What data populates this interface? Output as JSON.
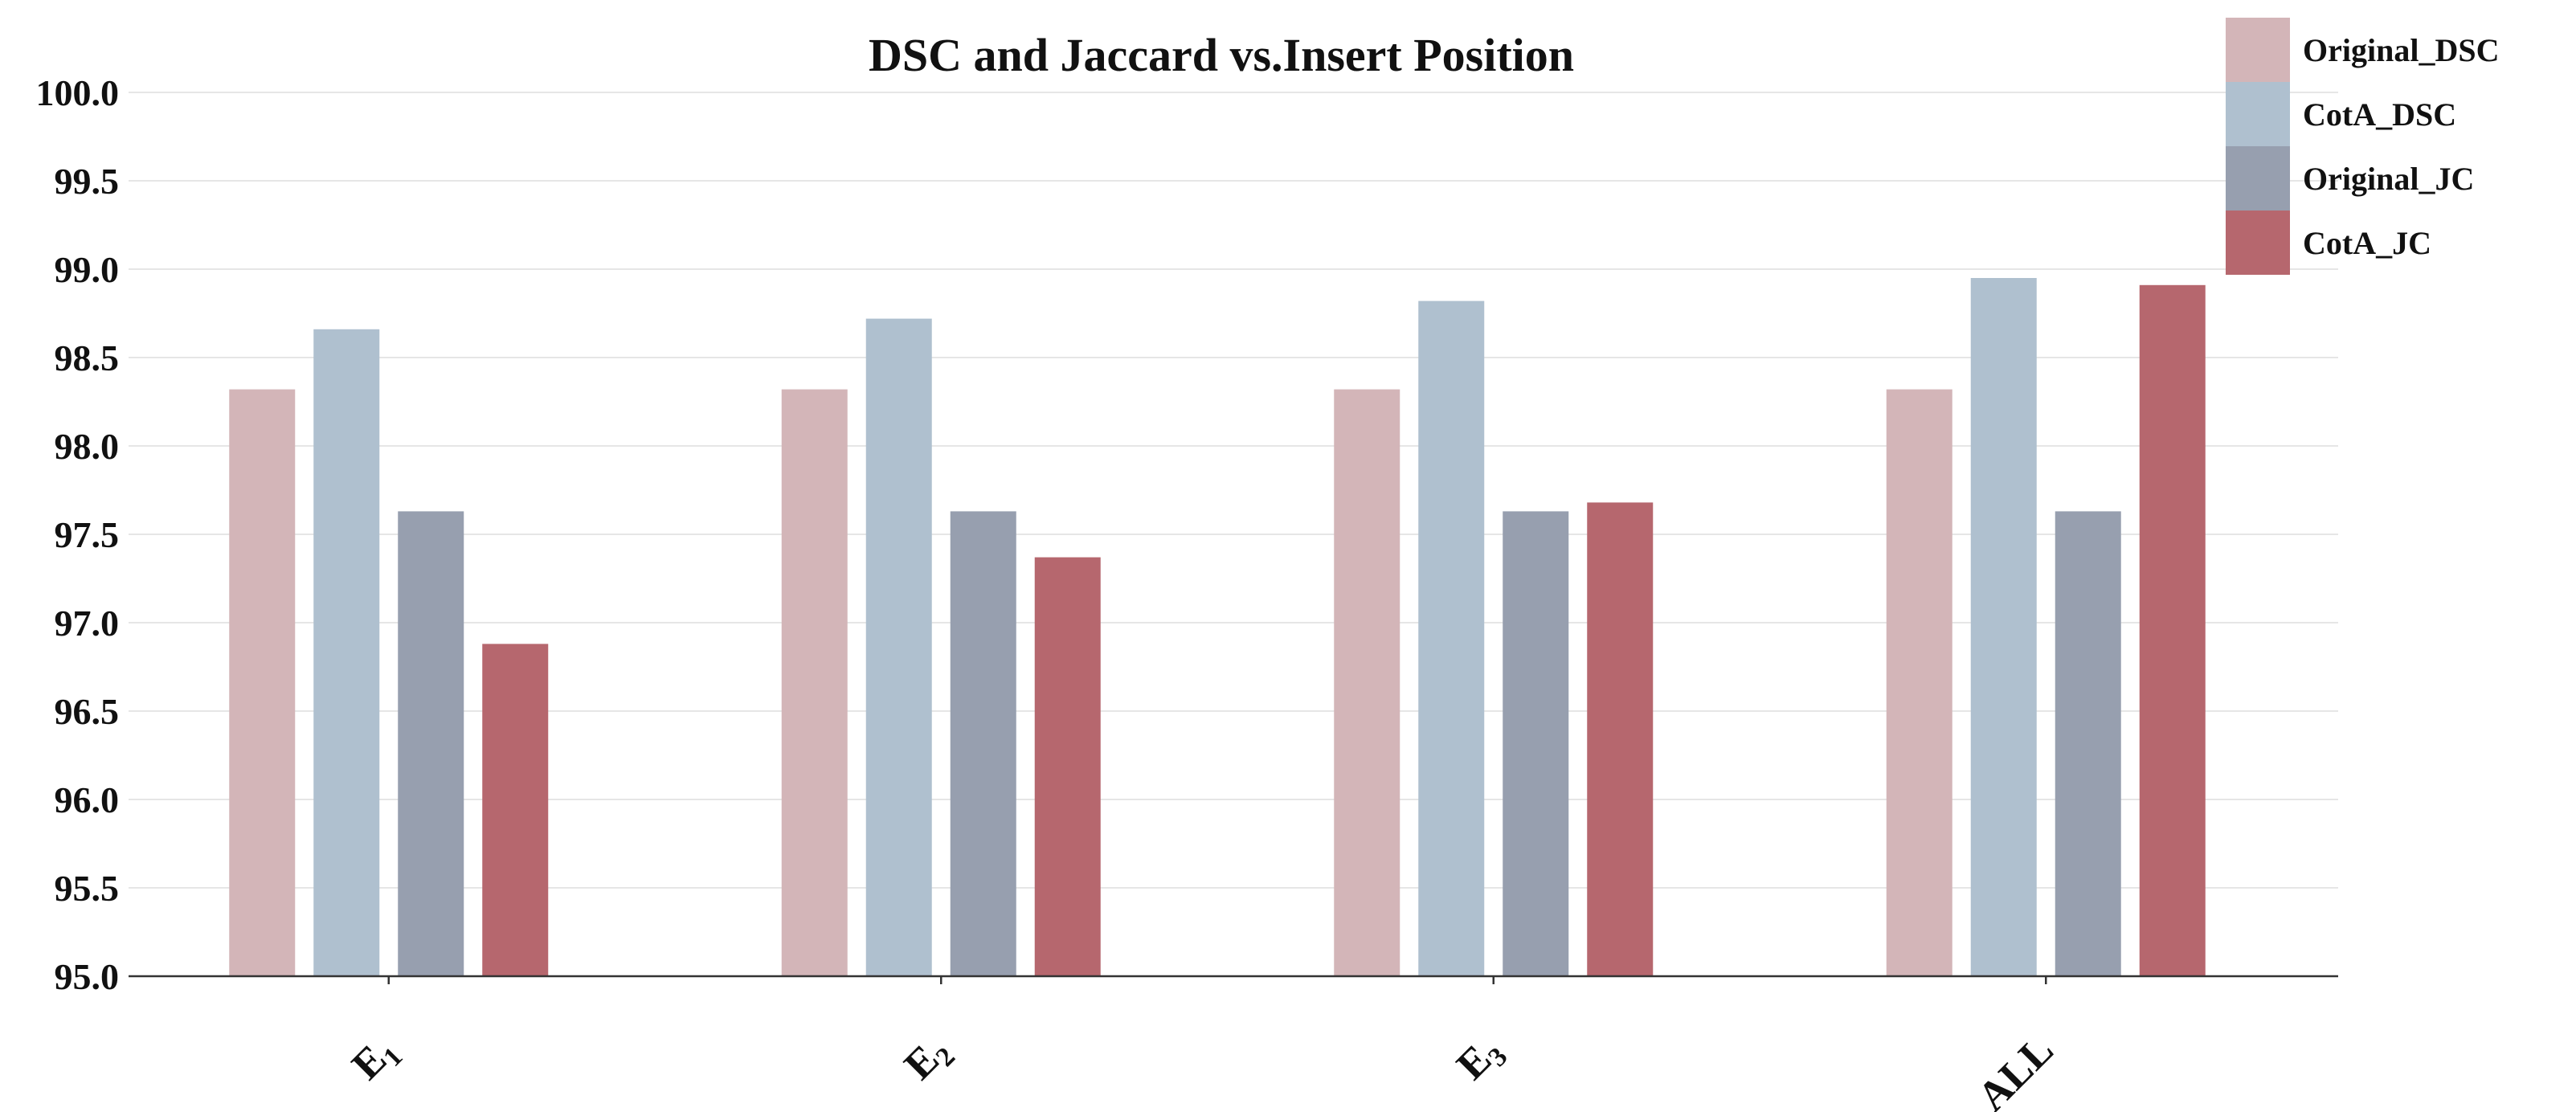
{
  "chart_data": {
    "type": "bar",
    "title": "DSC and Jaccard vs.Insert Position",
    "xlabel": "",
    "ylabel": "",
    "ylim": [
      95.0,
      100.0
    ],
    "yticks": [
      "95.0",
      "95.5",
      "96.0",
      "96.5",
      "97.0",
      "97.5",
      "98.0",
      "98.5",
      "99.0",
      "99.5",
      "100.0"
    ],
    "categories": [
      {
        "base": "E",
        "sub": "1"
      },
      {
        "base": "E",
        "sub": "2"
      },
      {
        "base": "E",
        "sub": "3"
      },
      {
        "base": "ALL",
        "sub": ""
      }
    ],
    "series": [
      {
        "name": "Original_DSC",
        "color": "#d3b5b8",
        "values": [
          98.32,
          98.32,
          98.32,
          98.32
        ]
      },
      {
        "name": "CotA_DSC",
        "color": "#afc0cf",
        "values": [
          98.66,
          98.72,
          98.82,
          98.95
        ]
      },
      {
        "name": "Original_JC",
        "color": "#979faf",
        "values": [
          97.63,
          97.63,
          97.63,
          97.63
        ]
      },
      {
        "name": "CotA_JC",
        "color": "#b6676e",
        "values": [
          96.88,
          97.37,
          97.68,
          98.91
        ]
      }
    ],
    "grid": true,
    "legend_position": "top-right"
  }
}
